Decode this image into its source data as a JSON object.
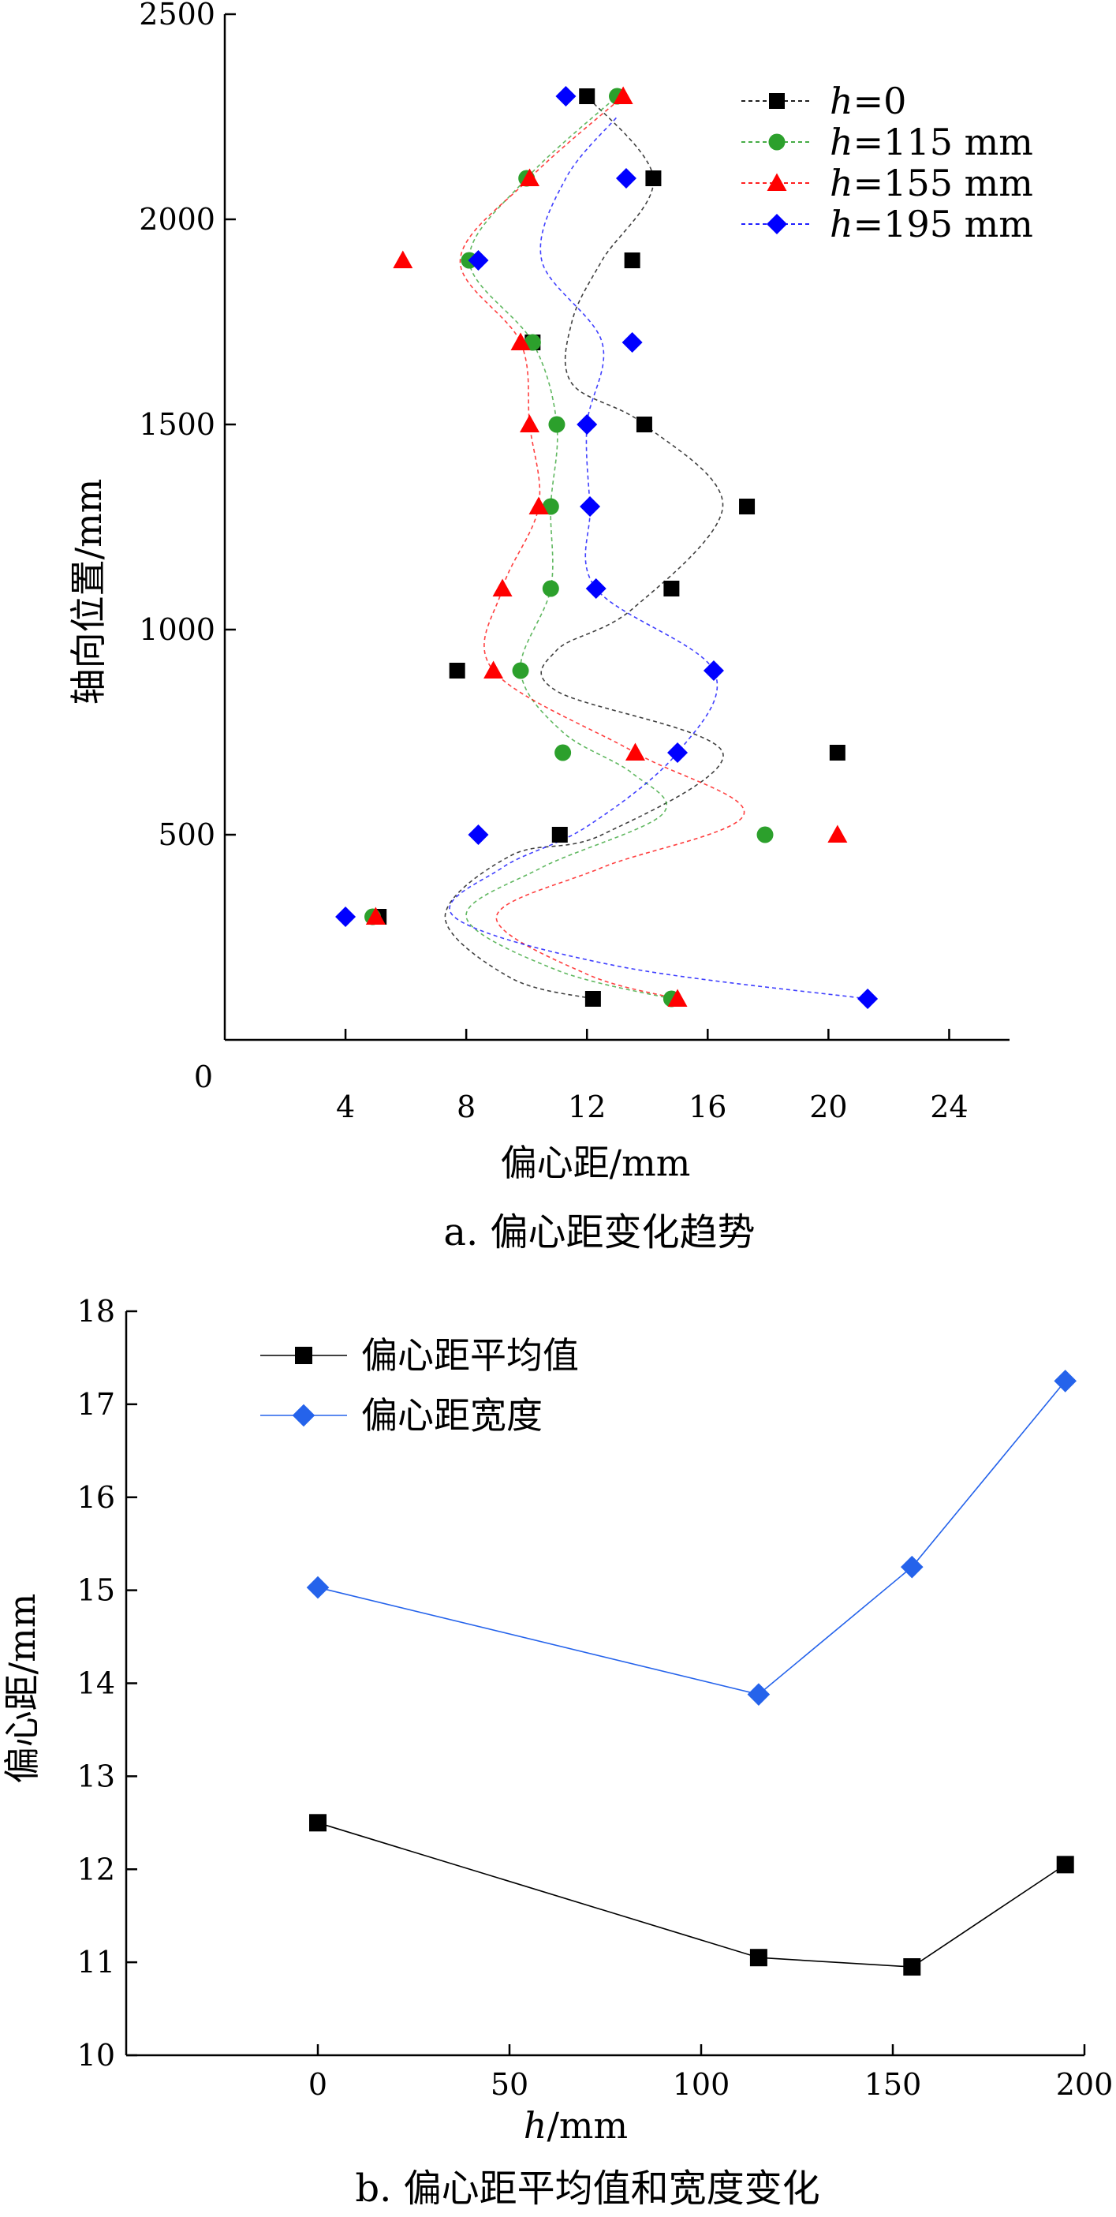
{
  "chart_data": [
    {
      "type": "scatter",
      "caption": "a. 偏心距变化趋势",
      "xlabel": "偏心距/mm",
      "ylabel": "轴向位置/mm",
      "xlim": [
        0,
        26
      ],
      "ylim": [
        0,
        2500
      ],
      "xticks": [
        4,
        8,
        12,
        16,
        20,
        24
      ],
      "yticks": [
        500,
        1000,
        1500,
        2000,
        2500
      ],
      "origin_label": "0",
      "legend_position": "top-right",
      "grid": false,
      "series": [
        {
          "name": "h = 0",
          "name_var": "h",
          "name_rest": "=0",
          "color": "#000000",
          "marker": "square",
          "points": [
            [
              5.1,
              300
            ],
            [
              12.2,
              100
            ],
            [
              11.1,
              500
            ],
            [
              20.3,
              700
            ],
            [
              7.7,
              900
            ],
            [
              14.8,
              1100
            ],
            [
              17.3,
              1300
            ],
            [
              13.9,
              1500
            ],
            [
              10.2,
              1700
            ],
            [
              13.5,
              1900
            ],
            [
              14.2,
              2100
            ],
            [
              12.0,
              2300
            ]
          ],
          "curve": [
            [
              12.2,
              100
            ],
            [
              9.5,
              150
            ],
            [
              7.3,
              300
            ],
            [
              9.5,
              450
            ],
            [
              12.5,
              500
            ],
            [
              16.5,
              700
            ],
            [
              11.0,
              850
            ],
            [
              11.0,
              950
            ],
            [
              13.5,
              1050
            ],
            [
              16.5,
              1300
            ],
            [
              13.9,
              1500
            ],
            [
              11.5,
              1600
            ],
            [
              11.5,
              1750
            ],
            [
              12.5,
              1900
            ],
            [
              14.2,
              2100
            ],
            [
              12.0,
              2300
            ]
          ]
        },
        {
          "name": "h = 115 mm",
          "name_var": "h",
          "name_rest": "=115 mm",
          "color": "#2ca02c",
          "marker": "circle",
          "points": [
            [
              14.8,
              100
            ],
            [
              4.9,
              300
            ],
            [
              17.9,
              500
            ],
            [
              11.2,
              700
            ],
            [
              9.8,
              900
            ],
            [
              10.8,
              1100
            ],
            [
              10.8,
              1300
            ],
            [
              11.0,
              1500
            ],
            [
              10.2,
              1700
            ],
            [
              8.1,
              1900
            ],
            [
              10.0,
              2100
            ],
            [
              13.0,
              2300
            ]
          ],
          "curve": [
            [
              14.8,
              100
            ],
            [
              11.0,
              170
            ],
            [
              8.0,
              300
            ],
            [
              10.5,
              420
            ],
            [
              14.5,
              550
            ],
            [
              13.5,
              650
            ],
            [
              11.2,
              750
            ],
            [
              9.8,
              900
            ],
            [
              10.8,
              1100
            ],
            [
              10.8,
              1300
            ],
            [
              11.0,
              1500
            ],
            [
              10.2,
              1700
            ],
            [
              8.1,
              1900
            ],
            [
              10.0,
              2100
            ],
            [
              13.0,
              2300
            ]
          ]
        },
        {
          "name": "h = 155 mm",
          "name_var": "h",
          "name_rest": "=155 mm",
          "color": "#ff0000",
          "marker": "triangle",
          "points": [
            [
              15.0,
              100
            ],
            [
              5.0,
              300
            ],
            [
              20.3,
              500
            ],
            [
              13.6,
              700
            ],
            [
              8.9,
              900
            ],
            [
              9.2,
              1100
            ],
            [
              10.4,
              1300
            ],
            [
              10.1,
              1500
            ],
            [
              9.8,
              1700
            ],
            [
              5.9,
              1900
            ],
            [
              10.1,
              2100
            ],
            [
              13.2,
              2300
            ]
          ],
          "curve": [
            [
              15.0,
              100
            ],
            [
              12.0,
              160
            ],
            [
              9.0,
              300
            ],
            [
              12.5,
              420
            ],
            [
              17.2,
              550
            ],
            [
              13.6,
              700
            ],
            [
              8.9,
              900
            ],
            [
              9.2,
              1100
            ],
            [
              10.4,
              1300
            ],
            [
              10.1,
              1500
            ],
            [
              9.8,
              1700
            ],
            [
              7.8,
              1900
            ],
            [
              10.1,
              2100
            ],
            [
              13.2,
              2300
            ]
          ]
        },
        {
          "name": "h = 195 mm",
          "name_var": "h",
          "name_rest": "=195 mm",
          "color": "#0000ff",
          "marker": "diamond",
          "points": [
            [
              21.3,
              100
            ],
            [
              4.0,
              300
            ],
            [
              8.4,
              500
            ],
            [
              15.0,
              700
            ],
            [
              16.2,
              900
            ],
            [
              12.3,
              1100
            ],
            [
              12.1,
              1300
            ],
            [
              12.0,
              1500
            ],
            [
              13.5,
              1700
            ],
            [
              8.4,
              1900
            ],
            [
              13.3,
              2100
            ],
            [
              11.3,
              2300
            ]
          ],
          "curve": [
            [
              21.3,
              100
            ],
            [
              13.0,
              180
            ],
            [
              7.6,
              300
            ],
            [
              9.2,
              420
            ],
            [
              12.0,
              520
            ],
            [
              15.0,
              700
            ],
            [
              16.2,
              900
            ],
            [
              12.3,
              1100
            ],
            [
              12.1,
              1300
            ],
            [
              12.0,
              1500
            ],
            [
              12.5,
              1700
            ],
            [
              10.5,
              1900
            ],
            [
              11.3,
              2100
            ],
            [
              13.0,
              2250
            ]
          ]
        }
      ]
    },
    {
      "type": "line",
      "caption": "b. 偏心距平均值和宽度变化",
      "xlabel": "h/mm",
      "xlabel_var": "h",
      "xlabel_rest": "/mm",
      "ylabel": "偏心距/mm",
      "xlim": [
        -50,
        200
      ],
      "ylim": [
        10,
        18
      ],
      "xticks": [
        0,
        50,
        100,
        150,
        200
      ],
      "yticks": [
        10,
        11,
        12,
        13,
        14,
        15,
        16,
        17,
        18
      ],
      "legend_position": "top-left",
      "grid": false,
      "categories": [
        0,
        115,
        155,
        195
      ],
      "series": [
        {
          "name": "偏心距平均值",
          "color": "#000000",
          "marker": "square",
          "values": [
            12.5,
            11.05,
            10.95,
            12.05
          ]
        },
        {
          "name": "偏心距宽度",
          "color": "#2563eb",
          "marker": "diamond",
          "values": [
            15.03,
            13.88,
            15.25,
            17.25
          ]
        }
      ]
    }
  ]
}
